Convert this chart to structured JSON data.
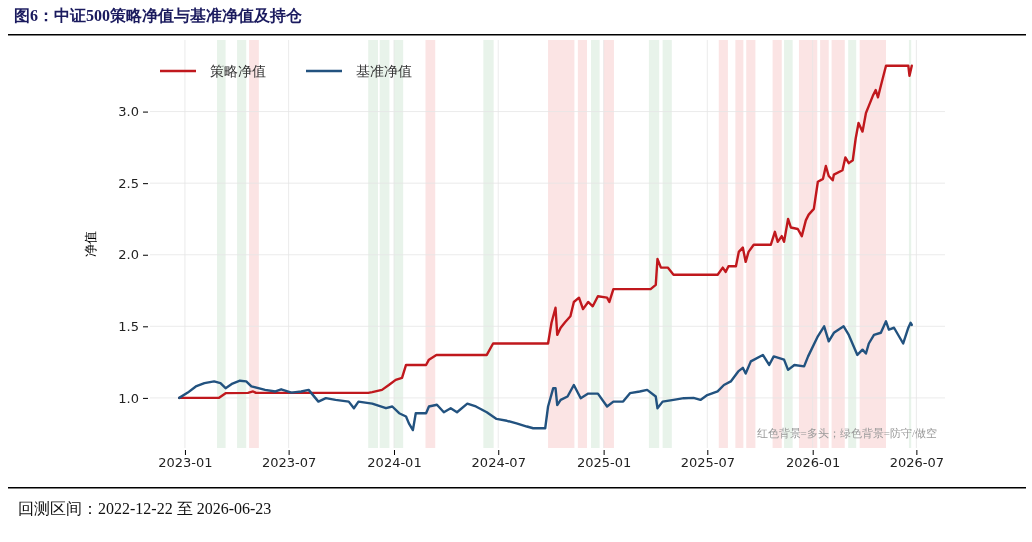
{
  "chart_data": {
    "type": "line",
    "title": "图6：中证500策略净值与基准净值及持仓",
    "ylabel": "净值",
    "annotations": [
      "红色背景=多头；绿色背景=防守/做空",
      "回测区间：2022-12-22 至 2026-06-23"
    ],
    "xlim": [
      "2022-11-01",
      "2026-08-20"
    ],
    "ylim": [
      0.65,
      3.5
    ],
    "xticks": [
      "2023-01",
      "2023-07",
      "2024-01",
      "2024-07",
      "2025-01",
      "2025-07",
      "2026-01",
      "2026-07"
    ],
    "yticks": [
      {
        "value": 1,
        "label": "1.0"
      },
      {
        "value": 1.5,
        "label": "1.5"
      },
      {
        "value": 2,
        "label": "2.0"
      },
      {
        "value": 2.5,
        "label": "2.5"
      },
      {
        "value": 3,
        "label": "3.0"
      }
    ],
    "grid": true,
    "legend": "top left",
    "series": [
      {
        "name": "策略净值",
        "color": "#c0181d",
        "x": [
          "2022-12-22",
          "2023-03-01",
          "2023-03-13",
          "2023-04-21",
          "2023-04-30",
          "2023-05-05",
          "2023-11-17",
          "2023-11-24",
          "2023-12-11",
          "2023-12-23",
          "2024-01-04",
          "2024-01-15",
          "2024-01-22",
          "2024-02-26",
          "2024-03-02",
          "2024-03-15",
          "2024-06-11",
          "2024-06-22",
          "2024-09-26",
          "2024-10-02",
          "2024-10-09",
          "2024-10-12",
          "2024-10-18",
          "2024-10-26",
          "2024-11-04",
          "2024-11-10",
          "2024-11-19",
          "2024-11-26",
          "2024-12-05",
          "2024-12-13",
          "2024-12-22",
          "2025-01-07",
          "2025-01-11",
          "2025-01-18",
          "2025-03-24",
          "2025-04-02",
          "2025-04-05",
          "2025-04-11",
          "2025-04-23",
          "2025-05-03",
          "2025-07-19",
          "2025-07-28",
          "2025-08-02",
          "2025-08-07",
          "2025-08-20",
          "2025-08-25",
          "2025-09-01",
          "2025-09-06",
          "2025-09-11",
          "2025-09-20",
          "2025-10-20",
          "2025-10-27",
          "2025-11-01",
          "2025-11-08",
          "2025-11-12",
          "2025-11-19",
          "2025-11-24",
          "2025-12-06",
          "2025-12-13",
          "2025-12-20",
          "2025-12-25",
          "2026-01-03",
          "2026-01-10",
          "2026-01-19",
          "2026-01-24",
          "2026-01-29",
          "2026-02-05",
          "2026-02-07",
          "2026-02-22",
          "2026-02-27",
          "2026-03-05",
          "2026-03-12",
          "2026-03-17",
          "2026-03-22",
          "2026-03-29",
          "2026-04-04",
          "2026-04-09",
          "2026-04-16",
          "2026-04-21",
          "2026-04-25",
          "2026-04-30",
          "2026-05-09",
          "2026-06-17",
          "2026-06-19",
          "2026-06-23"
        ],
        "values": [
          1.0,
          1.0,
          1.033,
          1.035,
          1.045,
          1.035,
          1.035,
          1.04,
          1.056,
          1.09,
          1.126,
          1.14,
          1.23,
          1.23,
          1.267,
          1.3,
          1.3,
          1.38,
          1.38,
          1.525,
          1.63,
          1.44,
          1.49,
          1.53,
          1.57,
          1.67,
          1.7,
          1.62,
          1.67,
          1.64,
          1.71,
          1.7,
          1.67,
          1.76,
          1.76,
          1.79,
          1.97,
          1.91,
          1.91,
          1.86,
          1.86,
          1.91,
          1.88,
          1.92,
          1.92,
          2.02,
          2.05,
          1.95,
          2.02,
          2.07,
          2.07,
          2.16,
          2.09,
          2.13,
          2.09,
          2.25,
          2.19,
          2.18,
          2.13,
          2.24,
          2.28,
          2.32,
          2.51,
          2.53,
          2.62,
          2.55,
          2.52,
          2.56,
          2.59,
          2.68,
          2.64,
          2.66,
          2.81,
          2.92,
          2.86,
          2.99,
          3.04,
          3.11,
          3.15,
          3.1,
          3.18,
          3.32,
          3.32,
          3.25,
          3.32
        ]
      },
      {
        "name": "基准净值",
        "color": "#22527f",
        "x": [
          "2022-12-22",
          "2023-01-06",
          "2023-01-20",
          "2023-02-04",
          "2023-02-21",
          "2023-03-04",
          "2023-03-13",
          "2023-03-25",
          "2023-04-07",
          "2023-04-18",
          "2023-04-27",
          "2023-05-21",
          "2023-06-08",
          "2023-06-18",
          "2023-07-06",
          "2023-07-23",
          "2023-08-05",
          "2023-08-22",
          "2023-09-04",
          "2023-09-21",
          "2023-10-14",
          "2023-10-23",
          "2023-10-31",
          "2023-11-24",
          "2023-12-18",
          "2023-12-29",
          "2024-01-10",
          "2024-01-22",
          "2024-01-27",
          "2024-02-03",
          "2024-02-08",
          "2024-02-26",
          "2024-03-02",
          "2024-03-16",
          "2024-03-28",
          "2024-04-09",
          "2024-04-20",
          "2024-05-08",
          "2024-05-23",
          "2024-06-11",
          "2024-06-28",
          "2024-07-16",
          "2024-08-02",
          "2024-08-20",
          "2024-08-31",
          "2024-09-21",
          "2024-09-26",
          "2024-10-05",
          "2024-10-09",
          "2024-10-12",
          "2024-10-18",
          "2024-10-30",
          "2024-11-10",
          "2024-11-22",
          "2024-12-05",
          "2024-12-22",
          "2025-01-07",
          "2025-01-18",
          "2025-02-04",
          "2025-02-16",
          "2025-03-05",
          "2025-03-18",
          "2025-04-02",
          "2025-04-05",
          "2025-04-14",
          "2025-05-03",
          "2025-05-21",
          "2025-06-07",
          "2025-06-19",
          "2025-07-01",
          "2025-07-19",
          "2025-07-30",
          "2025-08-11",
          "2025-08-24",
          "2025-09-01",
          "2025-09-06",
          "2025-09-15",
          "2025-10-06",
          "2025-10-17",
          "2025-10-25",
          "2025-11-12",
          "2025-11-19",
          "2025-11-30",
          "2025-12-17",
          "2025-12-24",
          "2026-01-10",
          "2026-01-21",
          "2026-01-29",
          "2026-02-07",
          "2026-02-24",
          "2026-03-05",
          "2026-03-20",
          "2026-03-29",
          "2026-04-04",
          "2026-04-09",
          "2026-04-18",
          "2026-04-30",
          "2026-05-09",
          "2026-05-14",
          "2026-05-23",
          "2026-06-08",
          "2026-06-17",
          "2026-06-21",
          "2026-06-23"
        ],
        "values": [
          1.0,
          1.037,
          1.08,
          1.103,
          1.115,
          1.103,
          1.068,
          1.1,
          1.12,
          1.115,
          1.08,
          1.056,
          1.045,
          1.06,
          1.037,
          1.045,
          1.056,
          0.974,
          0.998,
          0.986,
          0.974,
          0.928,
          0.974,
          0.96,
          0.928,
          0.94,
          0.893,
          0.87,
          0.822,
          0.775,
          0.893,
          0.893,
          0.94,
          0.952,
          0.9,
          0.928,
          0.9,
          0.96,
          0.94,
          0.9,
          0.853,
          0.84,
          0.822,
          0.8,
          0.788,
          0.788,
          0.94,
          1.068,
          1.068,
          0.95,
          0.986,
          1.01,
          1.09,
          0.998,
          1.03,
          1.03,
          0.94,
          0.974,
          0.974,
          1.033,
          1.045,
          1.056,
          1.01,
          0.928,
          0.974,
          0.986,
          0.998,
          1.0,
          0.986,
          1.02,
          1.045,
          1.09,
          1.115,
          1.185,
          1.21,
          1.17,
          1.255,
          1.3,
          1.23,
          1.29,
          1.267,
          1.196,
          1.23,
          1.22,
          1.29,
          1.43,
          1.5,
          1.395,
          1.455,
          1.5,
          1.44,
          1.3,
          1.337,
          1.31,
          1.38,
          1.44,
          1.455,
          1.535,
          1.477,
          1.49,
          1.38,
          1.49,
          1.525,
          1.51
        ]
      }
    ],
    "bands": [
      {
        "axis": "x",
        "from": "2023-02-26",
        "to": "2023-03-13",
        "color": "#e8f3ea"
      },
      {
        "axis": "x",
        "from": "2023-04-02",
        "to": "2023-04-18",
        "color": "#e8f3ea"
      },
      {
        "axis": "x",
        "from": "2023-04-23",
        "to": "2023-05-10",
        "color": "#fbe4e4"
      },
      {
        "axis": "x",
        "from": "2023-11-17",
        "to": "2023-12-04",
        "color": "#e8f3ea"
      },
      {
        "axis": "x",
        "from": "2023-12-07",
        "to": "2023-12-24",
        "color": "#e8f3ea"
      },
      {
        "axis": "x",
        "from": "2024-01-01",
        "to": "2024-01-17",
        "color": "#e8f3ea"
      },
      {
        "axis": "x",
        "from": "2024-02-25",
        "to": "2024-03-13",
        "color": "#fbe4e4"
      },
      {
        "axis": "x",
        "from": "2024-06-05",
        "to": "2024-06-23",
        "color": "#e8f3ea"
      },
      {
        "axis": "x",
        "from": "2024-09-26",
        "to": "2024-11-11",
        "color": "#fbe4e4"
      },
      {
        "axis": "x",
        "from": "2024-11-17",
        "to": "2024-12-03",
        "color": "#fbe4e4"
      },
      {
        "axis": "x",
        "from": "2024-12-10",
        "to": "2024-12-25",
        "color": "#e8f3ea"
      },
      {
        "axis": "x",
        "from": "2025-01-01",
        "to": "2025-01-19",
        "color": "#fbe4e4"
      },
      {
        "axis": "x",
        "from": "2025-03-21",
        "to": "2025-04-08",
        "color": "#e8f3ea"
      },
      {
        "axis": "x",
        "from": "2025-04-14",
        "to": "2025-04-30",
        "color": "#e8f3ea"
      },
      {
        "axis": "x",
        "from": "2025-07-21",
        "to": "2025-08-06",
        "color": "#fbe4e4"
      },
      {
        "axis": "x",
        "from": "2025-08-19",
        "to": "2025-09-02",
        "color": "#fbe4e4"
      },
      {
        "axis": "x",
        "from": "2025-09-07",
        "to": "2025-09-23",
        "color": "#fbe4e4"
      },
      {
        "axis": "x",
        "from": "2025-10-23",
        "to": "2025-11-08",
        "color": "#fbe4e4"
      },
      {
        "axis": "x",
        "from": "2025-11-12",
        "to": "2025-11-27",
        "color": "#e8f3ea"
      },
      {
        "axis": "x",
        "from": "2025-12-08",
        "to": "2026-01-09",
        "color": "#fbe4e4"
      },
      {
        "axis": "x",
        "from": "2026-01-14",
        "to": "2026-01-29",
        "color": "#fbe4e4"
      },
      {
        "axis": "x",
        "from": "2026-02-03",
        "to": "2026-02-26",
        "color": "#fbe4e4"
      },
      {
        "axis": "x",
        "from": "2026-03-04",
        "to": "2026-03-18",
        "color": "#e8f3ea"
      },
      {
        "axis": "x",
        "from": "2026-03-24",
        "to": "2026-05-09",
        "color": "#fbe4e4"
      },
      {
        "axis": "x",
        "from": "2026-06-18",
        "to": "2026-06-22",
        "color": "#e8f3ea"
      }
    ]
  }
}
